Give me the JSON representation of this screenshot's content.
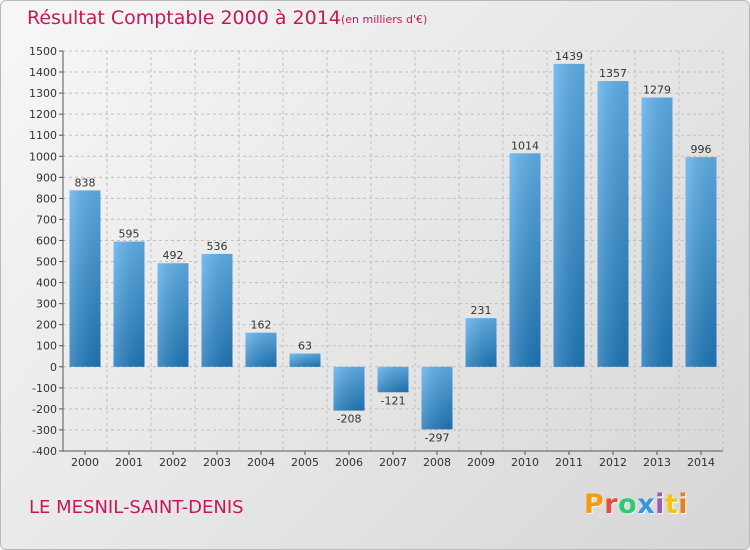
{
  "title": "Résultat Comptable 2000 à 2014",
  "subtitle": "(en milliers d'€)",
  "commune": "LE MESNIL-SAINT-DENIS",
  "logo": {
    "text": "Proxiti",
    "colors": [
      "#f39c12",
      "#e74c3c",
      "#2ecc71",
      "#3498db",
      "#9b59b6",
      "#f1c40f",
      "#e67e22"
    ]
  },
  "colors": {
    "title": "#c6185a",
    "bar_top": "#5fb0ea",
    "bar_bottom": "#1f77b8",
    "grid": "#bfbfbf"
  },
  "chart_data": {
    "type": "bar",
    "title": "Résultat Comptable 2000 à 2014",
    "xlabel": "",
    "ylabel": "",
    "categories": [
      "2000",
      "2001",
      "2002",
      "2003",
      "2004",
      "2005",
      "2006",
      "2007",
      "2008",
      "2009",
      "2010",
      "2011",
      "2012",
      "2013",
      "2014"
    ],
    "values": [
      838,
      595,
      492,
      536,
      162,
      63,
      -208,
      -121,
      -297,
      231,
      1014,
      1439,
      1357,
      1279,
      996
    ],
    "labels": [
      "838",
      "595",
      "492",
      "536",
      "162",
      "63",
      "-208",
      "-121",
      "-297",
      "231",
      "1014",
      "1439",
      "1357",
      "1279",
      "996"
    ],
    "ylim": [
      -400,
      1500
    ],
    "yticks": [
      -400,
      -300,
      -200,
      -100,
      0,
      100,
      200,
      300,
      400,
      500,
      600,
      700,
      800,
      900,
      1000,
      1100,
      1200,
      1300,
      1400,
      1500
    ],
    "grid": true,
    "legend": "none"
  }
}
